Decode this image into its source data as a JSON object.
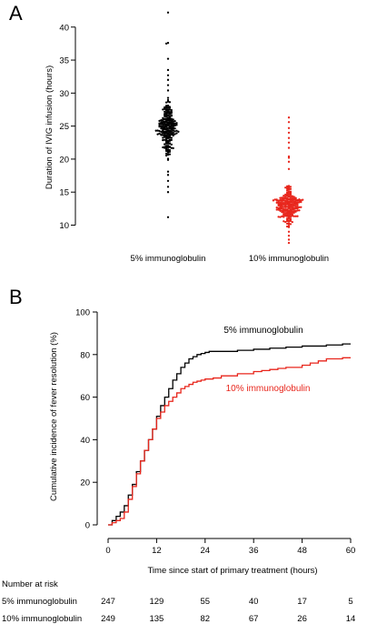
{
  "panels": {
    "a_letter": "A",
    "b_letter": "B"
  },
  "chart_data": [
    {
      "type": "scatter",
      "subtype": "beeswarm",
      "ylabel": "Duration of IVIG infusion (hours)",
      "yticks": [
        10,
        15,
        20,
        25,
        30,
        35,
        40
      ],
      "ylim": [
        8,
        43
      ],
      "categories": [
        "5% immunoglobulin",
        "10% immunoglobulin"
      ],
      "series": [
        {
          "name": "5% immunoglobulin",
          "color": "#000000",
          "center": 24.5,
          "spread": 2.0,
          "min": 11.2,
          "max": 42.2,
          "n": 247,
          "outliers": [
            42.2,
            37.6,
            37.5,
            35.2,
            33.5,
            32.7,
            32.0,
            31.2,
            30.4,
            17.6,
            16.7,
            15.8,
            15.0,
            11.2
          ]
        },
        {
          "name": "10% immunoglobulin",
          "color": "#e8261c",
          "center": 12.9,
          "spread": 1.4,
          "min": 7.3,
          "max": 26.3,
          "n": 249,
          "outliers": [
            26.3,
            25.6,
            24.7,
            24.0,
            23.2,
            22.5,
            21.7,
            20.4,
            20.2,
            19.6,
            18.5,
            9.0,
            8.4,
            7.8,
            7.3
          ]
        }
      ]
    },
    {
      "type": "line",
      "subtype": "step",
      "xlabel": "Time since start of primary treatment (hours)",
      "ylabel": "Cumulative incidence of fever resolution (%)",
      "xticks": [
        0,
        12,
        24,
        36,
        48,
        60
      ],
      "yticks": [
        0,
        20,
        40,
        60,
        80,
        100
      ],
      "xlim": [
        0,
        60
      ],
      "ylim": [
        0,
        100
      ],
      "legend_placement": "inline-right",
      "series": [
        {
          "name": "5% immunoglobulin",
          "color": "#000000",
          "x": [
            0,
            1,
            2,
            3,
            4,
            5,
            6,
            7,
            8,
            9,
            10,
            11,
            12,
            13,
            14,
            15,
            16,
            17,
            18,
            19,
            20,
            21,
            22,
            23,
            24,
            25,
            26,
            28,
            30,
            32,
            34,
            36,
            38,
            40,
            42,
            44,
            46,
            48,
            50,
            52,
            54,
            56,
            58,
            60
          ],
          "y": [
            0,
            2,
            4,
            6,
            9,
            14,
            19,
            25,
            30,
            35,
            40,
            45,
            51,
            56,
            60,
            64,
            68,
            71,
            74,
            76,
            78,
            79,
            80,
            80.5,
            81,
            81.5,
            81.5,
            81.5,
            81.5,
            82,
            82,
            82.5,
            82.5,
            83,
            83,
            83.5,
            83.5,
            84,
            84,
            84,
            84.5,
            84.5,
            85,
            85
          ]
        },
        {
          "name": "10% immunoglobulin",
          "color": "#e8261c",
          "x": [
            0,
            1,
            2,
            3,
            4,
            5,
            6,
            7,
            8,
            9,
            10,
            11,
            12,
            13,
            14,
            15,
            16,
            17,
            18,
            19,
            20,
            21,
            22,
            23,
            24,
            26,
            28,
            30,
            32,
            34,
            36,
            38,
            40,
            42,
            44,
            46,
            48,
            50,
            52,
            54,
            56,
            58,
            60
          ],
          "y": [
            0,
            1,
            2,
            3,
            6,
            12,
            18,
            24,
            30,
            35,
            40,
            45,
            50,
            53,
            56,
            58,
            60,
            62,
            64,
            65,
            66,
            67,
            67.5,
            68,
            68.5,
            69,
            70,
            70,
            71,
            71,
            72,
            72.5,
            73,
            73.5,
            74,
            74,
            75,
            76,
            77,
            78,
            78,
            78.5,
            78.5
          ]
        }
      ]
    }
  ],
  "risk_table": {
    "title": "Number at risk",
    "times": [
      0,
      12,
      24,
      36,
      48,
      60
    ],
    "rows": [
      {
        "label": "5% immunoglobulin",
        "values": [
          "247",
          "129",
          "55",
          "40",
          "17",
          "5"
        ]
      },
      {
        "label": "10% immunoglobulin",
        "values": [
          "249",
          "135",
          "82",
          "67",
          "26",
          "14"
        ]
      }
    ]
  }
}
